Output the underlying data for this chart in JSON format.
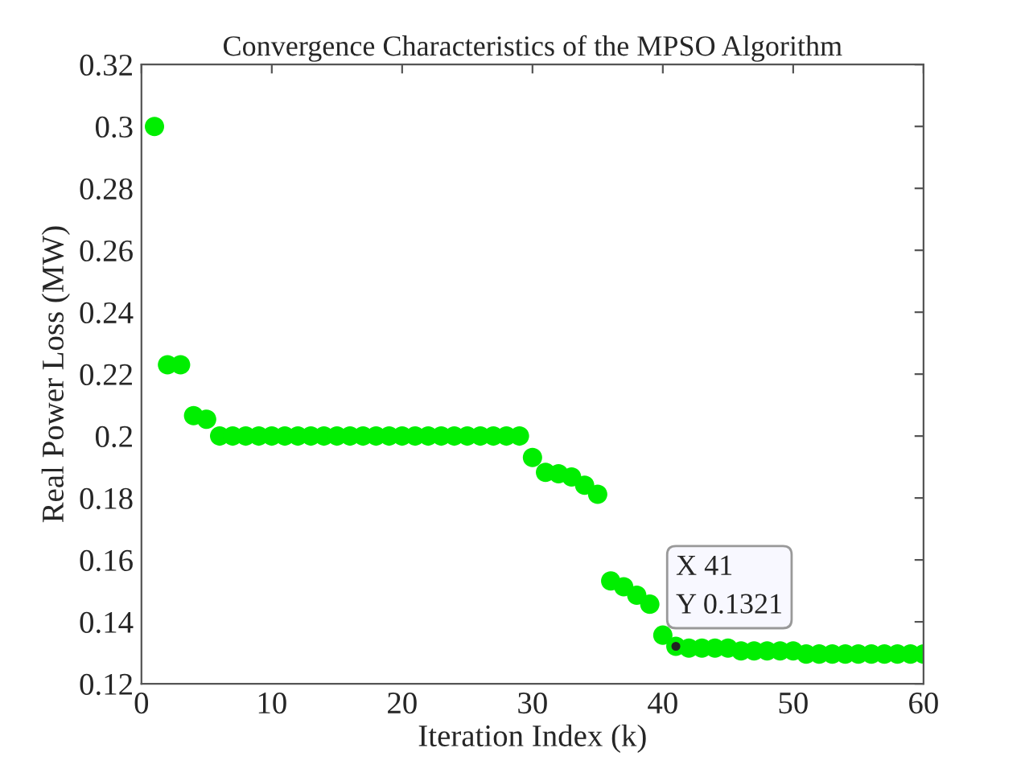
{
  "chart_data": {
    "type": "scatter",
    "title": "Convergence Characteristics of the MPSO Algorithm",
    "xlabel": "Iteration Index (k)",
    "ylabel": "Real Power Loss (MW)",
    "x": [
      1,
      2,
      3,
      4,
      5,
      6,
      7,
      8,
      9,
      10,
      11,
      12,
      13,
      14,
      15,
      16,
      17,
      18,
      19,
      20,
      21,
      22,
      23,
      24,
      25,
      26,
      27,
      28,
      29,
      30,
      31,
      32,
      33,
      34,
      35,
      36,
      37,
      38,
      39,
      40,
      41,
      42,
      43,
      44,
      45,
      46,
      47,
      48,
      49,
      50,
      51,
      52,
      53,
      54,
      55,
      56,
      57,
      58,
      59,
      60
    ],
    "series": [
      {
        "color": "#00ee00",
        "values": [
          0.3,
          0.223,
          0.223,
          0.2066,
          0.2054,
          0.2,
          0.2,
          0.2,
          0.2,
          0.2,
          0.2,
          0.2,
          0.2,
          0.2,
          0.2,
          0.2,
          0.2,
          0.2,
          0.2,
          0.2,
          0.2,
          0.2,
          0.2,
          0.2,
          0.2,
          0.2,
          0.2,
          0.2,
          0.2,
          0.1931,
          0.1883,
          0.1878,
          0.1868,
          0.1841,
          0.1812,
          0.1532,
          0.1513,
          0.1486,
          0.1457,
          0.1357,
          0.1321,
          0.1315,
          0.1315,
          0.1315,
          0.1315,
          0.1306,
          0.1306,
          0.1306,
          0.1306,
          0.1306,
          0.1296,
          0.1296,
          0.1296,
          0.1296,
          0.1296,
          0.1296,
          0.1296,
          0.1296,
          0.1296,
          0.1296
        ]
      }
    ],
    "marker": "circle",
    "xlim": [
      0,
      60
    ],
    "xticks": [
      0,
      10,
      20,
      30,
      40,
      50,
      60
    ],
    "ylim": [
      0.12,
      0.32
    ],
    "yticks": [
      0.12,
      0.14,
      0.16,
      0.18,
      0.2,
      0.22,
      0.24,
      0.26,
      0.28,
      0.3,
      0.32
    ],
    "grid": false,
    "legend": false,
    "annotations": [
      {
        "text": "X 41\nY 0.1321",
        "x": 41,
        "y": 0.1321
      }
    ]
  }
}
